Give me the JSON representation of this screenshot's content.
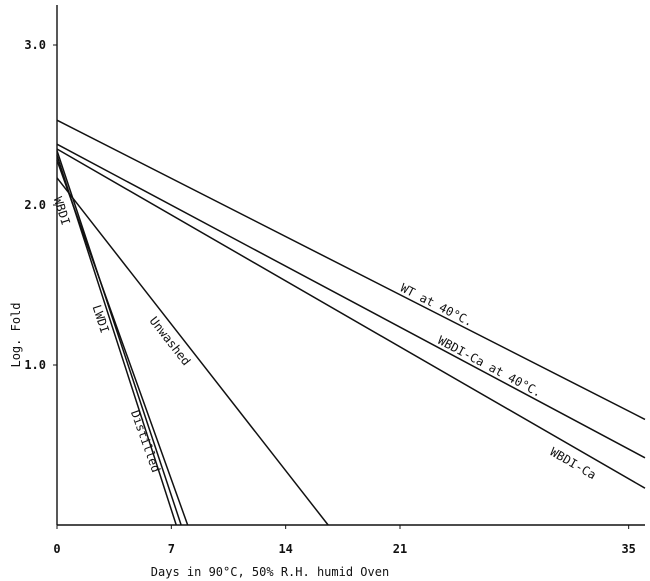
{
  "chart_data": {
    "type": "line",
    "title": "",
    "xlabel": "Days in 90°C, 50% R.H. humid Oven",
    "ylabel": "Log. Fold",
    "xlim": [
      0,
      36
    ],
    "ylim": [
      0,
      3.25
    ],
    "x_ticks": [
      "0",
      "7",
      "14",
      "21",
      "35"
    ],
    "y_ticks": [
      "1.0",
      "2.0",
      "3.0"
    ],
    "grid": false,
    "series": [
      {
        "name": "WT at 40°C.",
        "x": [
          0,
          36
        ],
        "y": [
          2.53,
          0.66
        ]
      },
      {
        "name": "WBDI-Ca at 40°C.",
        "x": [
          0,
          36
        ],
        "y": [
          2.38,
          0.42
        ]
      },
      {
        "name": "WBDI-Ca",
        "x": [
          0,
          36
        ],
        "y": [
          2.35,
          0.23
        ]
      },
      {
        "name": "Unwashed",
        "x": [
          0,
          16.6
        ],
        "y": [
          2.17,
          0
        ]
      },
      {
        "name": "Distilled",
        "x": [
          0,
          8
        ],
        "y": [
          2.28,
          0
        ]
      },
      {
        "name": "LWDI",
        "x": [
          0,
          7.6
        ],
        "y": [
          2.34,
          0
        ]
      },
      {
        "name": "WBDI",
        "x": [
          0,
          7.3
        ],
        "y": [
          2.31,
          0
        ]
      }
    ]
  }
}
